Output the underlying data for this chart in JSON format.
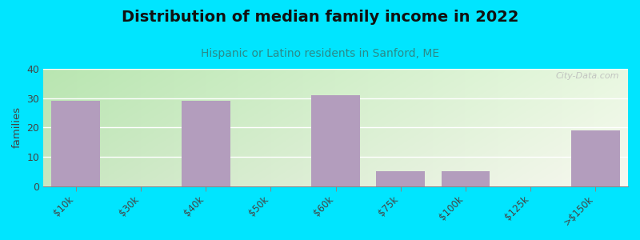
{
  "title": "Distribution of median family income in 2022",
  "subtitle": "Hispanic or Latino residents in Sanford, ME",
  "categories": [
    "$10k",
    "$30k",
    "$40k",
    "$50k",
    "$60k",
    "$75k",
    "$100k",
    "$125k",
    ">$150k"
  ],
  "values": [
    29,
    0,
    29,
    0,
    31,
    5,
    5,
    0,
    19
  ],
  "bar_color": "#b39dbd",
  "background_outer": "#00e5ff",
  "ylabel": "families",
  "ylim": [
    0,
    40
  ],
  "yticks": [
    0,
    10,
    20,
    30,
    40
  ],
  "title_fontsize": 14,
  "subtitle_fontsize": 10,
  "watermark": "City-Data.com",
  "grad_left": "#c8e6c0",
  "grad_right": "#f5f5f0"
}
